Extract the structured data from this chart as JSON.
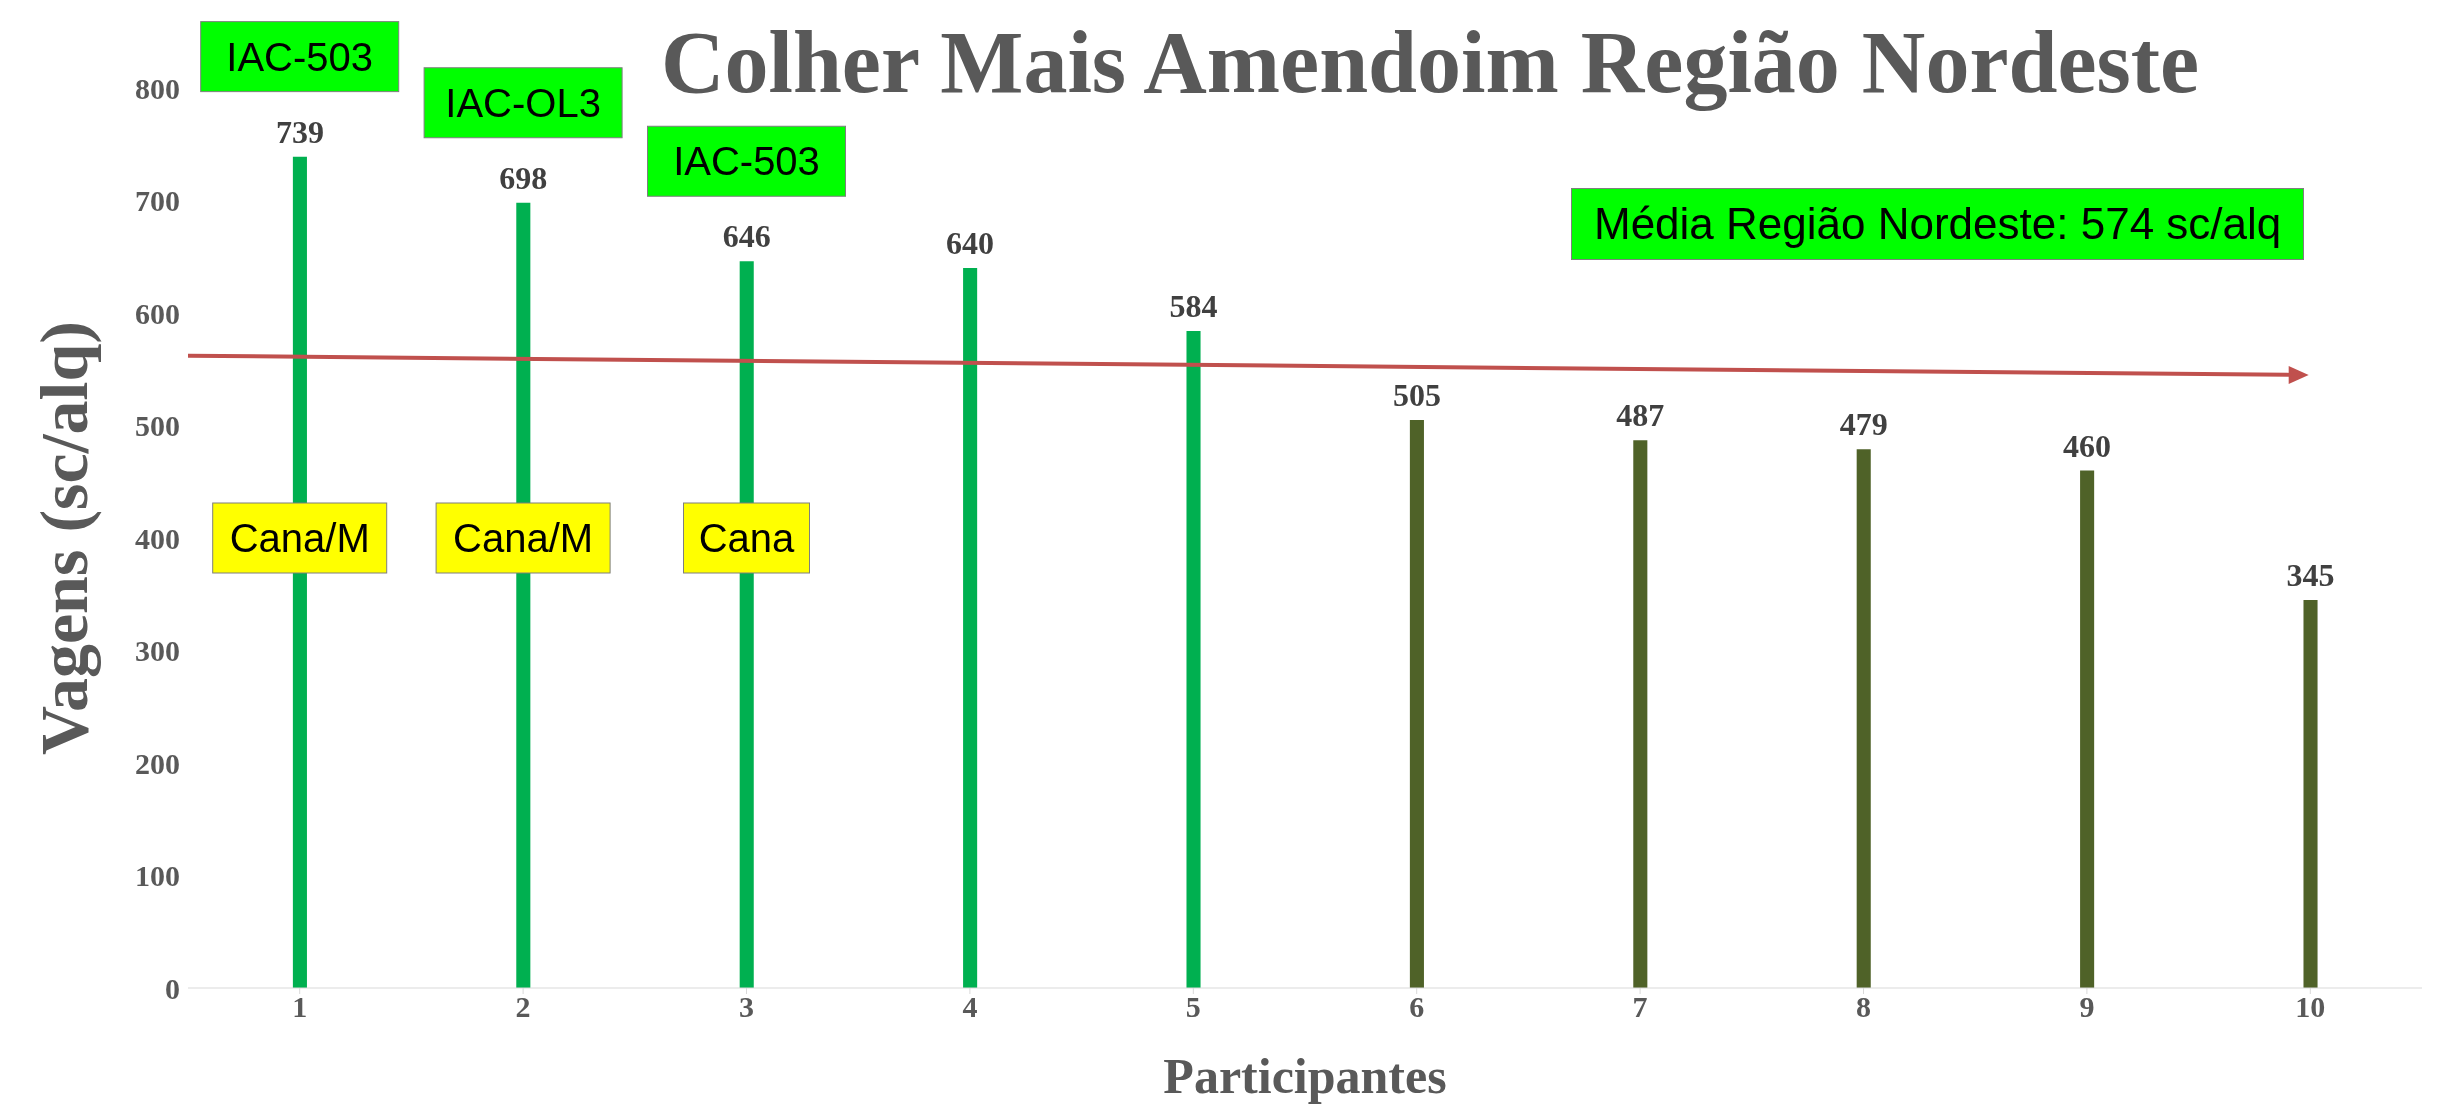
{
  "chart_data": {
    "type": "bar",
    "title": "Colher Mais Amendoim Região Nordeste",
    "xlabel": "Participantes",
    "ylabel": "Vagens (sc/alq)",
    "x": [
      1,
      2,
      3,
      4,
      5,
      6,
      7,
      8,
      9,
      10
    ],
    "values": [
      739,
      698,
      646,
      640,
      584,
      505,
      487,
      479,
      460,
      345
    ],
    "value_labels": [
      "739",
      "698",
      "646",
      "640",
      "584",
      "505",
      "487",
      "479",
      "460",
      "345"
    ],
    "colors": [
      "#00b050",
      "#00b050",
      "#00b050",
      "#00b050",
      "#00b050",
      "#4f6228",
      "#4f6228",
      "#4f6228",
      "#4f6228",
      "#4f6228"
    ],
    "series": [
      {
        "type": "line",
        "color": "#c0504d",
        "x": [
          0.5,
          9.93
        ],
        "values": [
          562,
          545
        ]
      }
    ],
    "xlim": [
      0.5,
      10.5
    ],
    "xticks": [
      1,
      2,
      3,
      4,
      5,
      6,
      7,
      8,
      9,
      10
    ],
    "ylim": [
      0,
      800
    ],
    "yticks": [
      0,
      100,
      200,
      300,
      400,
      500,
      600,
      700,
      800
    ],
    "annotations": [
      "IAC-503",
      "IAC-OL3",
      "IAC-503",
      "Cana/M",
      "Cana/M",
      "Cana",
      "Média Região Nordeste: 574 sc/alq"
    ]
  }
}
